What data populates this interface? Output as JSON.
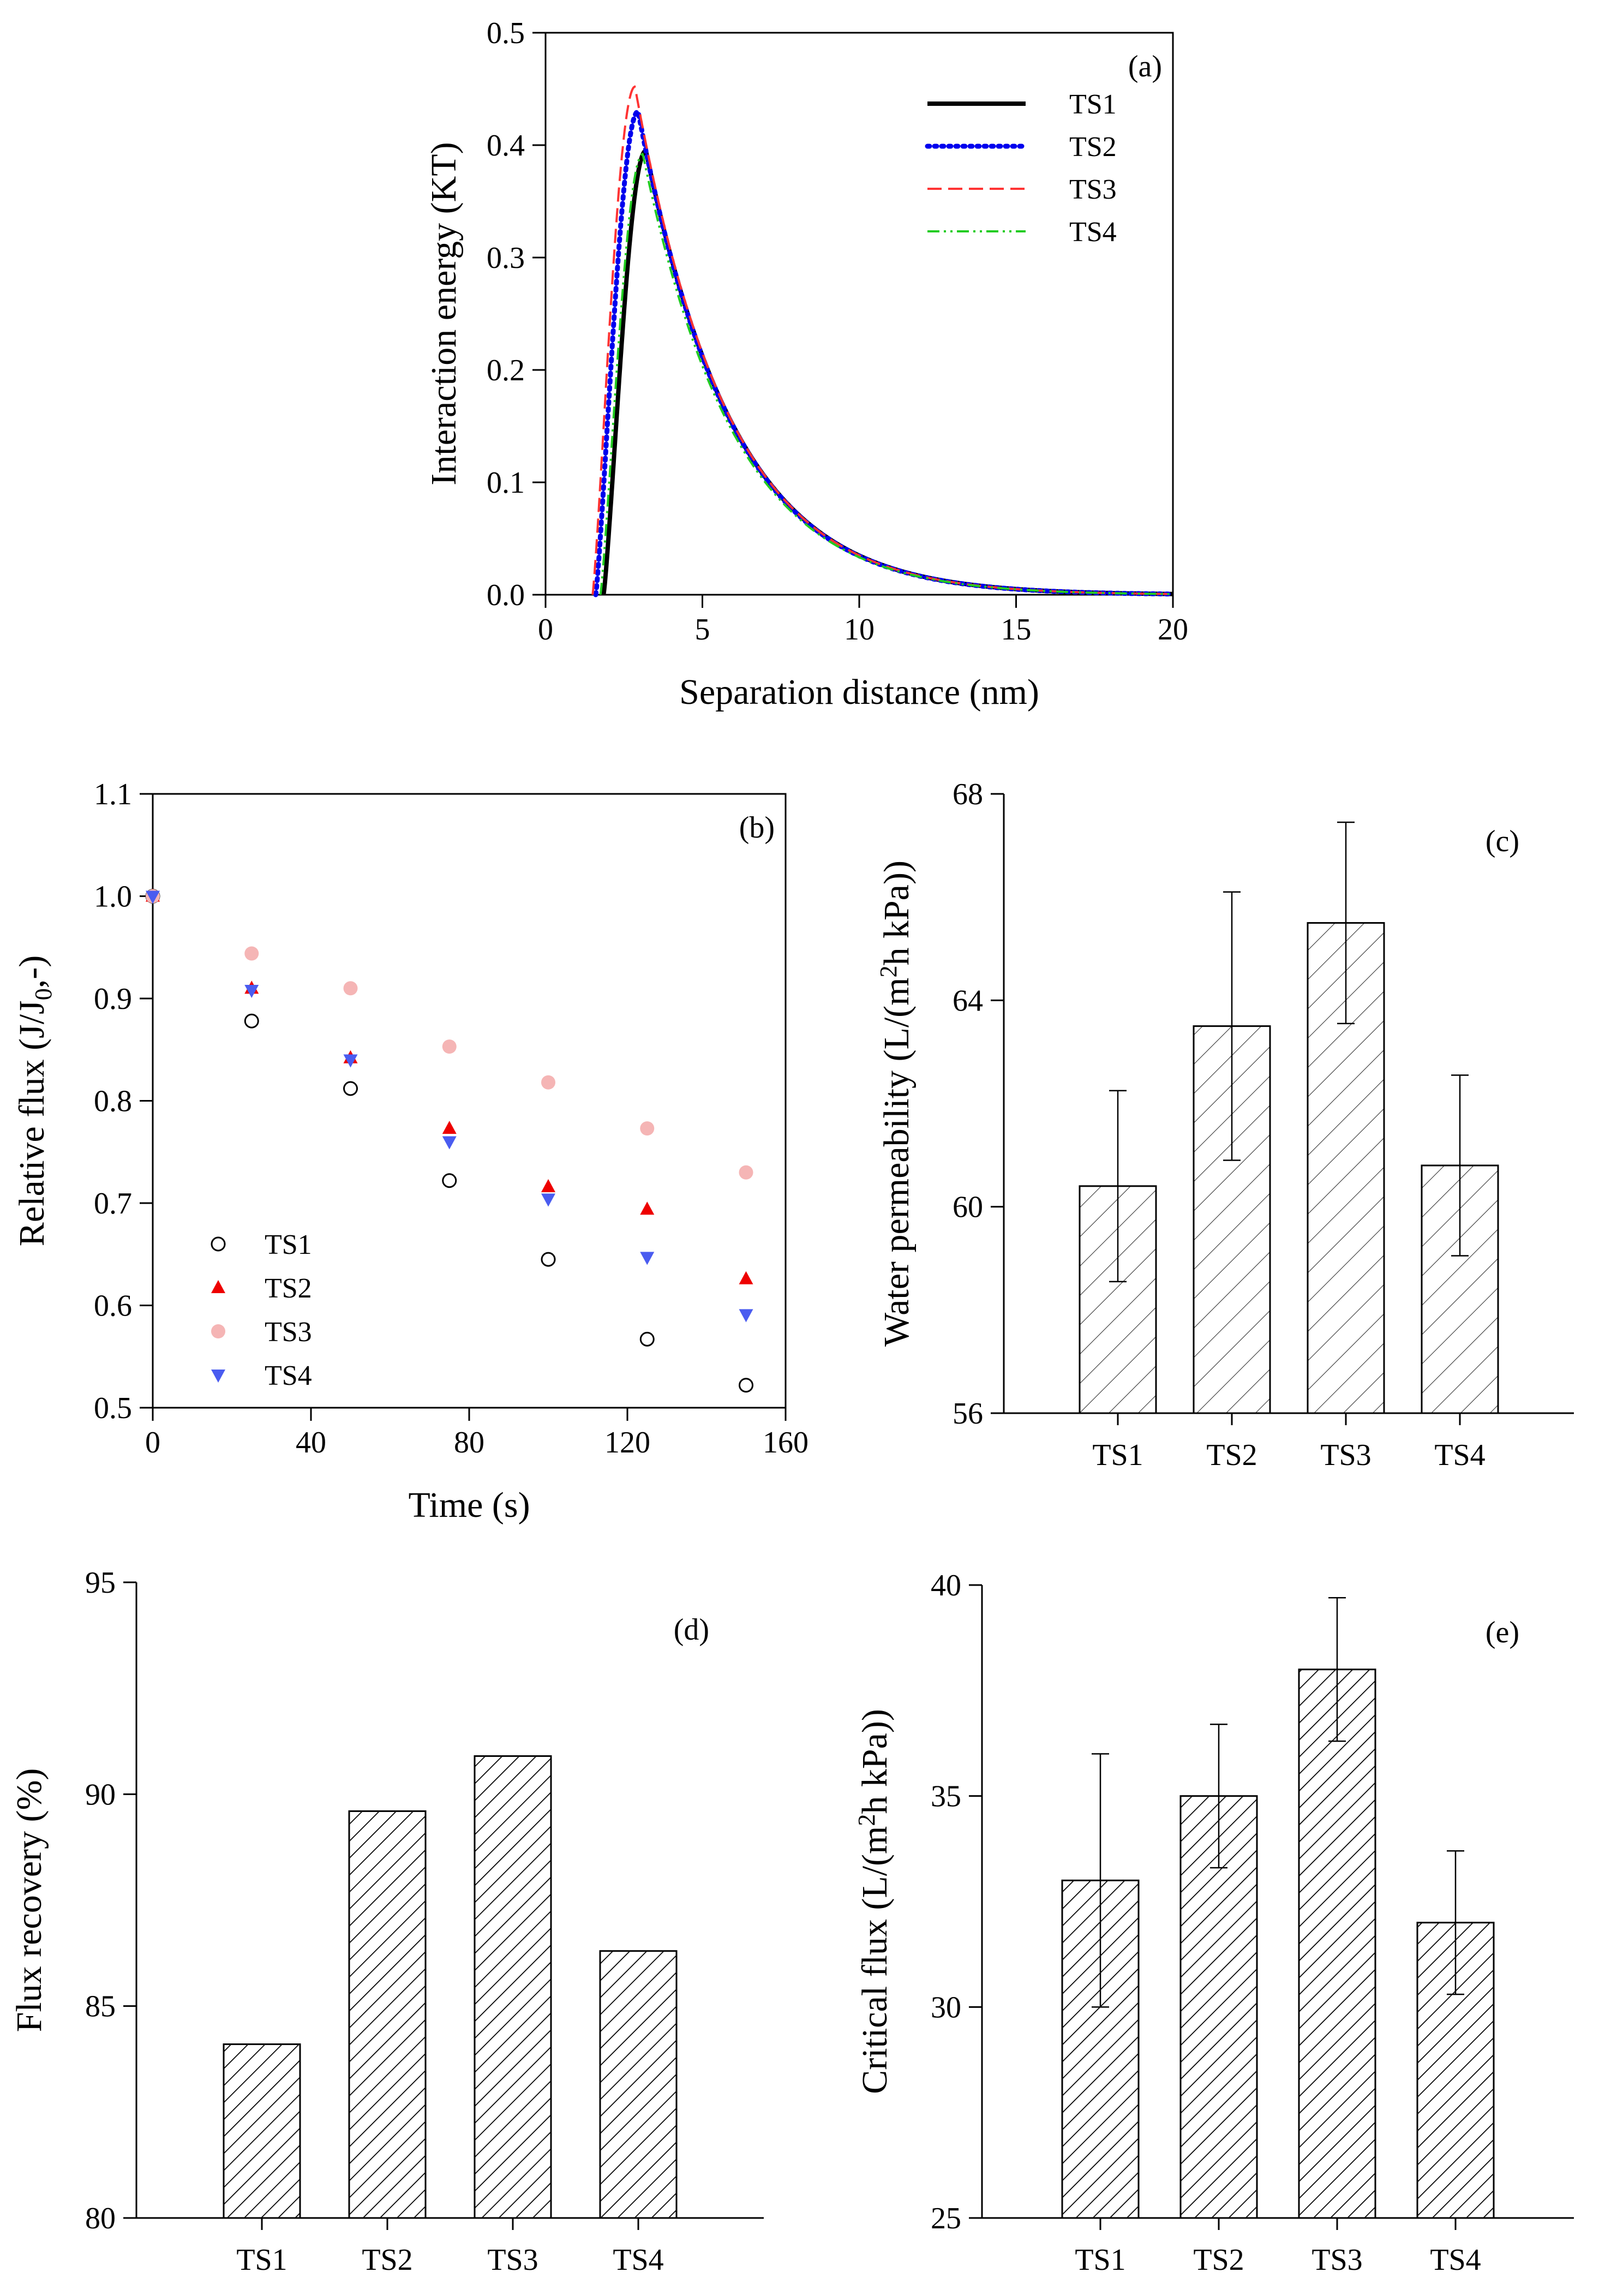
{
  "figure": {
    "panels": [
      "a",
      "b",
      "c",
      "d",
      "e"
    ]
  },
  "colors": {
    "TS1": "#000000",
    "TS2": "#0000ee",
    "TS3": "#ff3333",
    "TS4": "#22cc22",
    "TS3_marker": "#f5b5b5",
    "TS4_marker": "#4a5cf0",
    "TS2_marker": "#ee0000"
  },
  "chart_data": [
    {
      "id": "a",
      "type": "line",
      "panel_tag": "(a)",
      "xlabel": "Separation distance (nm)",
      "ylabel": "Interaction energy (KT)",
      "xlim": [
        0,
        20
      ],
      "ylim": [
        0,
        0.5
      ],
      "xticks": [
        "0",
        "5",
        "10",
        "15",
        "20"
      ],
      "yticks": [
        "0.0",
        "0.1",
        "0.2",
        "0.3",
        "0.4",
        "0.5"
      ],
      "legend_position": "top-right",
      "series": [
        {
          "name": "TS1",
          "style": "solid",
          "x0": 1.85,
          "peak_x": 3.2,
          "peak_y": 0.395
        },
        {
          "name": "TS2",
          "style": "dotted",
          "x0": 1.6,
          "peak_x": 2.95,
          "peak_y": 0.43
        },
        {
          "name": "TS3",
          "style": "dashed",
          "x0": 1.5,
          "peak_x": 2.85,
          "peak_y": 0.452
        },
        {
          "name": "TS4",
          "style": "dash-dot-dot",
          "x0": 1.75,
          "peak_x": 3.1,
          "peak_y": 0.392
        }
      ]
    },
    {
      "id": "b",
      "type": "scatter",
      "panel_tag": "(b)",
      "xlabel": "Time (s)",
      "ylabel_main": "Relative flux (J/J",
      "ylabel_sub": "0",
      "ylabel_tail": ",-)",
      "xlim": [
        0,
        160
      ],
      "ylim": [
        0.5,
        1.1
      ],
      "xticks": [
        "0",
        "40",
        "80",
        "120",
        "160"
      ],
      "yticks": [
        "0.5",
        "0.6",
        "0.7",
        "0.8",
        "0.9",
        "1.0",
        "1.1"
      ],
      "legend_position": "bottom-left",
      "x": [
        0,
        25,
        50,
        75,
        100,
        125,
        150
      ],
      "series": [
        {
          "name": "TS1",
          "marker": "open-circle",
          "values": [
            1.0,
            0.878,
            0.812,
            0.722,
            0.645,
            0.567,
            0.522
          ]
        },
        {
          "name": "TS2",
          "marker": "triangle-up",
          "values": [
            1.0,
            0.91,
            0.842,
            0.773,
            0.716,
            0.694,
            0.626
          ]
        },
        {
          "name": "TS3",
          "marker": "filled-circle",
          "values": [
            1.0,
            0.944,
            0.91,
            0.853,
            0.818,
            0.773,
            0.73
          ]
        },
        {
          "name": "TS4",
          "marker": "triangle-down",
          "values": [
            1.0,
            0.908,
            0.84,
            0.76,
            0.704,
            0.647,
            0.591
          ]
        }
      ]
    },
    {
      "id": "c",
      "type": "bar",
      "panel_tag": "(c)",
      "ylabel_main": "Water permeability (L/(m",
      "ylabel_sup": "2",
      "ylabel_tail": "h kPa))",
      "categories": [
        "TS1",
        "TS2",
        "TS3",
        "TS4"
      ],
      "values": [
        60.4,
        63.5,
        65.5,
        60.8
      ],
      "errors": [
        1.85,
        2.6,
        1.95,
        1.75
      ],
      "ylim": [
        56,
        68
      ],
      "yticks": [
        "56",
        "60",
        "64",
        "68"
      ]
    },
    {
      "id": "d",
      "type": "bar",
      "panel_tag": "(d)",
      "ylabel_main": "Flux recovery (%)",
      "categories": [
        "TS1",
        "TS2",
        "TS3",
        "TS4"
      ],
      "values": [
        84.1,
        89.6,
        90.9,
        86.3
      ],
      "ylim": [
        80,
        95
      ],
      "yticks": [
        "80",
        "85",
        "90",
        "95"
      ]
    },
    {
      "id": "e",
      "type": "bar",
      "panel_tag": "(e)",
      "ylabel_main": "Critical flux (L/(m",
      "ylabel_sup": "2",
      "ylabel_tail": "h kPa))",
      "categories": [
        "TS1",
        "TS2",
        "TS3",
        "TS4"
      ],
      "values": [
        33.0,
        35.0,
        38.0,
        32.0
      ],
      "errors": [
        3.0,
        1.7,
        1.7,
        1.7
      ],
      "ylim": [
        25,
        40
      ],
      "yticks": [
        "25",
        "30",
        "35",
        "40"
      ]
    }
  ]
}
